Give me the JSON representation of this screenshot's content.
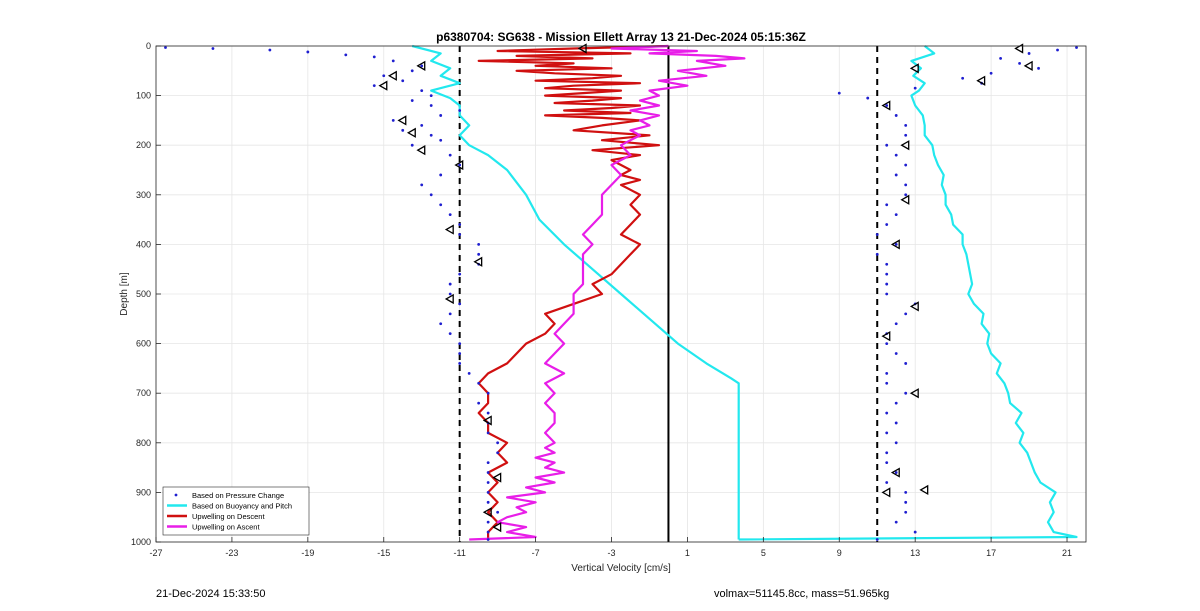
{
  "chart_data": {
    "type": "scatter",
    "title": "p6380704: SG638 - Mission Ellett Array 13 21-Dec-2024 05:15:36Z",
    "xlabel": "Vertical Velocity [cm/s]",
    "ylabel": "Depth [m]",
    "xlim": [
      -27,
      22
    ],
    "ylim": [
      1000,
      0
    ],
    "x_ticks": [
      -27,
      -23,
      -19,
      -15,
      -11,
      -7,
      -3,
      1,
      5,
      9,
      13,
      17,
      21
    ],
    "y_ticks": [
      0,
      100,
      200,
      300,
      400,
      500,
      600,
      700,
      800,
      900,
      1000
    ],
    "grid": true,
    "legend_location": "bottom-left",
    "reference_lines": [
      {
        "x": -11,
        "style": "dashed",
        "color": "#000000"
      },
      {
        "x": 0,
        "style": "solid",
        "color": "#000000"
      },
      {
        "x": 11,
        "style": "dashed",
        "color": "#000000"
      }
    ],
    "series": [
      {
        "name": "Based on Pressure Change",
        "style": "dots",
        "color": "#1f1fd0",
        "profiles": [
          {
            "depth": [
              3,
              5,
              8,
              12,
              18,
              22,
              30,
              40,
              50,
              60,
              70,
              80,
              90,
              100,
              110,
              120,
              130,
              140,
              150,
              160,
              170,
              180,
              190,
              200,
              220,
              240,
              260,
              280,
              300,
              320,
              340,
              360,
              380,
              400,
              420,
              440,
              460,
              480,
              500,
              520,
              540,
              560,
              580,
              600,
              620,
              640,
              660,
              680,
              700,
              720,
              740,
              760,
              780,
              800,
              820,
              840,
              860,
              880,
              900,
              920,
              940,
              960,
              980,
              995
            ],
            "x": [
              -26.5,
              -24,
              -21,
              -19,
              -17,
              -15.5,
              -14.5,
              -13,
              -13.5,
              -15,
              -14,
              -15.5,
              -13,
              -12.5,
              -13.5,
              -12.5,
              -11,
              -12,
              -14.5,
              -13,
              -14,
              -12.5,
              -12,
              -13.5,
              -11.5,
              -11,
              -12,
              -13,
              -12.5,
              -12,
              -11.5,
              -11,
              -11,
              -10,
              -10,
              -10,
              -11,
              -11.5,
              -11.5,
              -11,
              -11.5,
              -12,
              -11.5,
              -11,
              -11,
              -11,
              -10.5,
              -10,
              -9.5,
              -10,
              -9.5,
              -9.5,
              -9.5,
              -9,
              -9,
              -9.5,
              -9.5,
              -9.5,
              -9.5,
              -9.5,
              -9,
              -9.5,
              -9.5,
              -9.5
            ]
          },
          {
            "depth": [
              3,
              8,
              15,
              25,
              35,
              45,
              55,
              65,
              75,
              85,
              95,
              105,
              120,
              140,
              160,
              180,
              200,
              220,
              240,
              260,
              280,
              300,
              320,
              340,
              360,
              380,
              400,
              420,
              440,
              460,
              480,
              500,
              520,
              540,
              560,
              580,
              600,
              620,
              640,
              660,
              680,
              700,
              720,
              740,
              760,
              780,
              800,
              820,
              840,
              860,
              880,
              900,
              920,
              940,
              960,
              980,
              995
            ],
            "x": [
              21.5,
              20.5,
              19,
              17.5,
              18.5,
              19.5,
              17,
              15.5,
              16.5,
              13,
              9,
              10.5,
              11.5,
              12,
              12.5,
              12.5,
              11.5,
              12,
              12.5,
              12,
              12.5,
              12.5,
              11.5,
              12,
              11.5,
              11,
              12,
              11,
              11.5,
              11.5,
              11.5,
              11.5,
              13,
              12.5,
              12,
              11.5,
              11.5,
              12,
              12.5,
              11.5,
              11.5,
              12.5,
              12,
              11.5,
              12,
              11.5,
              12,
              11.5,
              11.5,
              12,
              11.5,
              12.5,
              12.5,
              12.5,
              12,
              13,
              11
            ]
          }
        ]
      },
      {
        "name": "Based on Buoyancy and Pitch",
        "style": "line",
        "color": "#22e8ee",
        "profiles": [
          {
            "depth": [
              0,
              15,
              30,
              45,
              60,
              75,
              90,
              105,
              120,
              140,
              160,
              180,
              200,
              210,
              220,
              250,
              300,
              350,
              400,
              450,
              500,
              550,
              600,
              640,
              670,
              680,
              700,
              800,
              900,
              990,
              995
            ],
            "x": [
              -13.5,
              -12,
              -12.5,
              -11.5,
              -12,
              -11,
              -12.5,
              -11.5,
              -11,
              -11,
              -10.5,
              -11,
              -10.5,
              -10,
              -9.5,
              -8.5,
              -7.5,
              -6.8,
              -5.5,
              -4,
              -2.5,
              -1,
              0.5,
              2,
              3.3,
              3.7,
              3.7,
              3.7,
              3.7,
              3.7,
              3.7
            ]
          },
          {
            "depth": [
              995,
              990,
              980,
              960,
              940,
              920,
              900,
              880,
              860,
              840,
              820,
              800,
              780,
              760,
              740,
              720,
              700,
              680,
              660,
              640,
              620,
              600,
              580,
              560,
              540,
              520,
              500,
              480,
              460,
              440,
              420,
              400,
              380,
              360,
              340,
              320,
              300,
              280,
              260,
              240,
              220,
              200,
              180,
              160,
              140,
              120,
              100,
              90,
              75,
              60,
              45,
              30,
              15,
              0
            ],
            "x": [
              3.7,
              21.5,
              20.3,
              20,
              20.3,
              20.1,
              20.4,
              19.6,
              19.3,
              19.1,
              18.9,
              18.5,
              18.7,
              18.3,
              18.6,
              18,
              17.9,
              17.7,
              17.3,
              17.5,
              17,
              16.8,
              16.9,
              16.5,
              16.6,
              16.1,
              15.8,
              16,
              15.9,
              15.8,
              15.7,
              15.5,
              15.5,
              15,
              14.9,
              14.6,
              14.6,
              14.4,
              14.5,
              14.2,
              14,
              13.9,
              13.5,
              13.5,
              13.4,
              13,
              12.8,
              13.2,
              13.5,
              12.9,
              13.3,
              12.8,
              14,
              13.5
            ]
          }
        ]
      },
      {
        "name": "Upwelling on Descent",
        "style": "line",
        "color": "#d01010",
        "profiles": [
          {
            "depth": [
              0,
              5,
              10,
              15,
              20,
              25,
              30,
              35,
              40,
              45,
              50,
              55,
              60,
              65,
              70,
              75,
              80,
              85,
              90,
              95,
              100,
              105,
              110,
              115,
              120,
              125,
              130,
              135,
              140,
              145,
              150,
              160,
              170,
              180,
              190,
              200,
              210,
              220,
              230,
              240,
              250,
              260,
              270,
              280,
              290,
              300,
              320,
              340,
              360,
              380,
              400,
              420,
              440,
              460,
              480,
              500,
              520,
              540,
              560,
              580,
              600,
              620,
              640,
              660,
              680,
              700,
              720,
              740,
              760,
              780,
              800,
              820,
              840,
              860,
              880,
              900,
              920,
              940,
              960,
              980,
              995
            ],
            "x": [
              0,
              -5,
              -9,
              -2,
              -8,
              -4,
              -10,
              -5,
              -7,
              -3,
              -8,
              -6,
              -2.5,
              -4,
              -7,
              -1.5,
              -5,
              -6.5,
              -2.5,
              -4.5,
              -6.5,
              -2.5,
              -4,
              -6,
              -1.5,
              -3,
              -5.5,
              -2,
              -6.5,
              -3.5,
              -1.5,
              -3.5,
              -5,
              -1,
              -3.5,
              -0.5,
              -4,
              -1.5,
              -3,
              -2.5,
              -2,
              -2.5,
              -1.5,
              -2.5,
              -2,
              -1.5,
              -2,
              -1.5,
              -2,
              -2.5,
              -1.5,
              -2,
              -2.5,
              -3,
              -4,
              -3.5,
              -5,
              -6.5,
              -6,
              -6.5,
              -7.5,
              -8,
              -8.5,
              -9.5,
              -10,
              -9.5,
              -9.5,
              -10,
              -9.5,
              -9.5,
              -8.5,
              -9,
              -8.5,
              -9.5,
              -9,
              -9.5,
              -9,
              -9.5,
              -9,
              -9.5,
              -9.5
            ]
          }
        ]
      },
      {
        "name": "Upwelling on Ascent",
        "style": "line",
        "color": "#e81ee8",
        "profiles": [
          {
            "depth": [
              995,
              990,
              980,
              970,
              960,
              950,
              940,
              930,
              920,
              910,
              900,
              890,
              880,
              870,
              860,
              850,
              840,
              830,
              820,
              810,
              800,
              780,
              760,
              740,
              720,
              700,
              680,
              660,
              640,
              620,
              600,
              580,
              560,
              540,
              520,
              500,
              480,
              460,
              440,
              420,
              400,
              380,
              360,
              340,
              320,
              300,
              280,
              260,
              240,
              220,
              200,
              190,
              180,
              170,
              160,
              150,
              140,
              130,
              120,
              110,
              100,
              90,
              80,
              70,
              60,
              50,
              40,
              30,
              25,
              20,
              15,
              10,
              5,
              0
            ],
            "x": [
              -10.5,
              -7,
              -8.5,
              -7.5,
              -9,
              -8.5,
              -7.5,
              -8,
              -7,
              -8.5,
              -6.5,
              -7.5,
              -6,
              -7,
              -5.5,
              -6.5,
              -6,
              -7,
              -6,
              -6.5,
              -6,
              -6.5,
              -6,
              -6,
              -6.5,
              -6,
              -6.5,
              -5.5,
              -6.5,
              -6,
              -5.5,
              -6,
              -5.5,
              -5,
              -5,
              -5,
              -4.5,
              -4.5,
              -4.5,
              -4.5,
              -4,
              -4.5,
              -4,
              -3.5,
              -3.5,
              -3.5,
              -3,
              -2.5,
              -3,
              -2,
              -2.5,
              -2,
              -1.5,
              -2,
              -1,
              -1.5,
              -0.5,
              -2,
              -0.5,
              -1.5,
              -0.5,
              -1,
              1,
              -0.5,
              2,
              0.5,
              3,
              1.5,
              4,
              2.5,
              -1,
              1.5,
              -3,
              0
            ]
          }
        ]
      }
    ],
    "markers": [
      {
        "x": -13,
        "depth": 40
      },
      {
        "x": -14.5,
        "depth": 60
      },
      {
        "x": -15,
        "depth": 80
      },
      {
        "x": -14,
        "depth": 150
      },
      {
        "x": -13.5,
        "depth": 175
      },
      {
        "x": -13,
        "depth": 210
      },
      {
        "x": -11,
        "depth": 240
      },
      {
        "x": -11.5,
        "depth": 370
      },
      {
        "x": -10,
        "depth": 435
      },
      {
        "x": -11.5,
        "depth": 510
      },
      {
        "x": -9.5,
        "depth": 755
      },
      {
        "x": -9,
        "depth": 870
      },
      {
        "x": -9.5,
        "depth": 940
      },
      {
        "x": -9,
        "depth": 970
      },
      {
        "x": -4.5,
        "depth": 5
      },
      {
        "x": 18.5,
        "depth": 5
      },
      {
        "x": 19,
        "depth": 40
      },
      {
        "x": 13,
        "depth": 45
      },
      {
        "x": 16.5,
        "depth": 70
      },
      {
        "x": 11.5,
        "depth": 120
      },
      {
        "x": 12.5,
        "depth": 200
      },
      {
        "x": 12.5,
        "depth": 310
      },
      {
        "x": 12,
        "depth": 400
      },
      {
        "x": 13,
        "depth": 525
      },
      {
        "x": 11.5,
        "depth": 585
      },
      {
        "x": 13,
        "depth": 700
      },
      {
        "x": 12,
        "depth": 860
      },
      {
        "x": 11.5,
        "depth": 900
      },
      {
        "x": 13.5,
        "depth": 895
      }
    ]
  },
  "footer": {
    "timestamp": "21-Dec-2024 15:33:50",
    "info": "volmax=51145.8cc, mass=51.965kg"
  }
}
